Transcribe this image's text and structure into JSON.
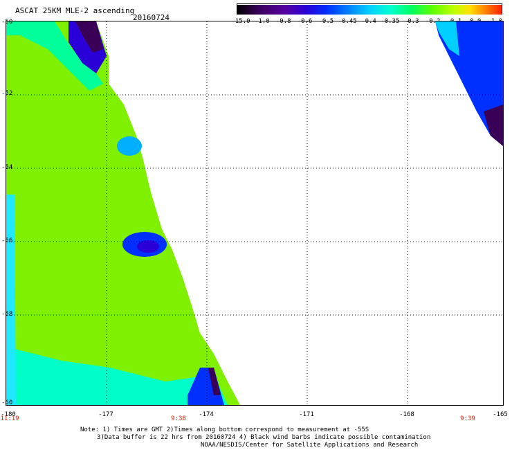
{
  "title": "ASCAT 25KM MLE-2 ascending",
  "date": "20160724",
  "colorbar": {
    "labels": [
      "-15.0",
      "-1.0",
      "-0.8",
      "-0.6",
      "-0.5",
      "-0.45",
      "-0.4",
      "-0.35",
      "-0.3",
      "-0.2",
      "-0.1",
      "0.0",
      "1.0"
    ],
    "colors": [
      "#000000",
      "#3a0058",
      "#5500a0",
      "#2a00d8",
      "#0030ff",
      "#0080ff",
      "#00d0ff",
      "#00ffd0",
      "#00ff60",
      "#60ff00",
      "#c0ff00",
      "#ffe000",
      "#ff8000",
      "#ff2000"
    ]
  },
  "map": {
    "lat_labels": [
      "-50",
      "-52",
      "-54",
      "-56",
      "-58",
      "-60"
    ],
    "lon_labels": [
      "-180",
      "-177",
      "-174",
      "-171",
      "-168",
      "-165"
    ],
    "time_labels": [
      "11:19",
      "9:38",
      "9:39"
    ]
  },
  "notes": [
    "Note: 1) Times are GMT 2)Times along bottom correspond to measurement at -55S",
    "3)Data buffer is 22 hrs from 20160724 4) Black wind barbs indicate possible contamination",
    "NOAA/NESDIS/Center for Satellite Applications and Research"
  ],
  "colors": {
    "swath_main": "#7ef000",
    "swath_edge": "#00ff7a",
    "low": "#2a00d8",
    "very_low": "#3a0058"
  }
}
